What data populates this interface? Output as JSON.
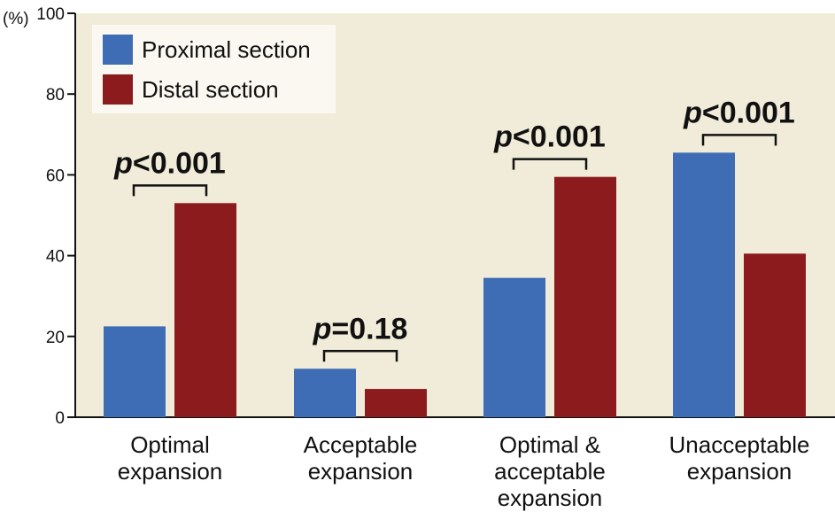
{
  "chart_data": {
    "type": "bar",
    "y_unit_label": "(%)",
    "ylim": [
      0,
      100
    ],
    "yticks": [
      0,
      20,
      40,
      60,
      80,
      100
    ],
    "categories": [
      [
        "Optimal",
        "expansion"
      ],
      [
        "Acceptable",
        "expansion"
      ],
      [
        "Optimal &",
        "acceptable",
        "expansion"
      ],
      [
        "Unacceptable",
        "expansion"
      ]
    ],
    "series": [
      {
        "name": "Proximal section",
        "color": "#3f6db5",
        "values": [
          22.5,
          12,
          34.5,
          65.5
        ]
      },
      {
        "name": "Distal section",
        "color": "#8b1b1c",
        "values": [
          53,
          7,
          59.5,
          40.5
        ]
      }
    ],
    "p_values": [
      {
        "prefix": "p",
        "rest": "<0.001"
      },
      {
        "prefix": "p",
        "rest": "=0.18"
      },
      {
        "prefix": "p",
        "rest": "<0.001"
      },
      {
        "prefix": "p",
        "rest": "<0.001"
      }
    ],
    "legend_position": "top-left",
    "grid": false,
    "colors": {
      "plot_background": "#f1ecd9",
      "legend_background": "#faf8f0"
    }
  }
}
